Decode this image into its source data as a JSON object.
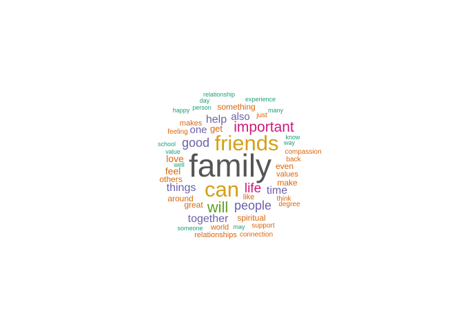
{
  "palette": {
    "gray": "#555555",
    "orange": "#D9650B",
    "gold": "#D4A017",
    "purple": "#6A5FAA",
    "magenta": "#D0197A",
    "green": "#60A020",
    "teal": "#1B9E77"
  },
  "words": [
    {
      "text": "family",
      "color": "gray"
    },
    {
      "text": "friends",
      "color": "gold"
    },
    {
      "text": "can",
      "color": "gold"
    },
    {
      "text": "important",
      "color": "magenta"
    },
    {
      "text": "will",
      "color": "green"
    },
    {
      "text": "life",
      "color": "magenta"
    },
    {
      "text": "good",
      "color": "purple"
    },
    {
      "text": "people",
      "color": "purple"
    },
    {
      "text": "together",
      "color": "purple"
    },
    {
      "text": "things",
      "color": "purple"
    },
    {
      "text": "time",
      "color": "purple"
    },
    {
      "text": "help",
      "color": "purple"
    },
    {
      "text": "also",
      "color": "purple"
    },
    {
      "text": "one",
      "color": "purple"
    },
    {
      "text": "love",
      "color": "orange"
    },
    {
      "text": "feel",
      "color": "orange"
    },
    {
      "text": "get",
      "color": "orange"
    },
    {
      "text": "something",
      "color": "orange"
    },
    {
      "text": "others",
      "color": "orange"
    },
    {
      "text": "around",
      "color": "orange"
    },
    {
      "text": "great",
      "color": "orange"
    },
    {
      "text": "spiritual",
      "color": "orange"
    },
    {
      "text": "even",
      "color": "orange"
    },
    {
      "text": "make",
      "color": "orange"
    },
    {
      "text": "like",
      "color": "orange"
    },
    {
      "text": "values",
      "color": "orange"
    },
    {
      "text": "world",
      "color": "orange"
    },
    {
      "text": "relationships",
      "color": "orange"
    },
    {
      "text": "makes",
      "color": "orange"
    },
    {
      "text": "back",
      "color": "orange"
    },
    {
      "text": "think",
      "color": "orange"
    },
    {
      "text": "feeling",
      "color": "orange"
    },
    {
      "text": "compassion",
      "color": "orange"
    },
    {
      "text": "support",
      "color": "orange"
    },
    {
      "text": "connection",
      "color": "orange"
    },
    {
      "text": "degree",
      "color": "orange"
    },
    {
      "text": "just",
      "color": "orange"
    },
    {
      "text": "relationship",
      "color": "teal"
    },
    {
      "text": "day",
      "color": "teal"
    },
    {
      "text": "experience",
      "color": "teal"
    },
    {
      "text": "happy",
      "color": "teal"
    },
    {
      "text": "person",
      "color": "teal"
    },
    {
      "text": "many",
      "color": "teal"
    },
    {
      "text": "school",
      "color": "teal"
    },
    {
      "text": "value",
      "color": "teal"
    },
    {
      "text": "well",
      "color": "teal"
    },
    {
      "text": "know",
      "color": "teal"
    },
    {
      "text": "way",
      "color": "teal"
    },
    {
      "text": "someone",
      "color": "teal"
    },
    {
      "text": "may",
      "color": "teal"
    }
  ]
}
